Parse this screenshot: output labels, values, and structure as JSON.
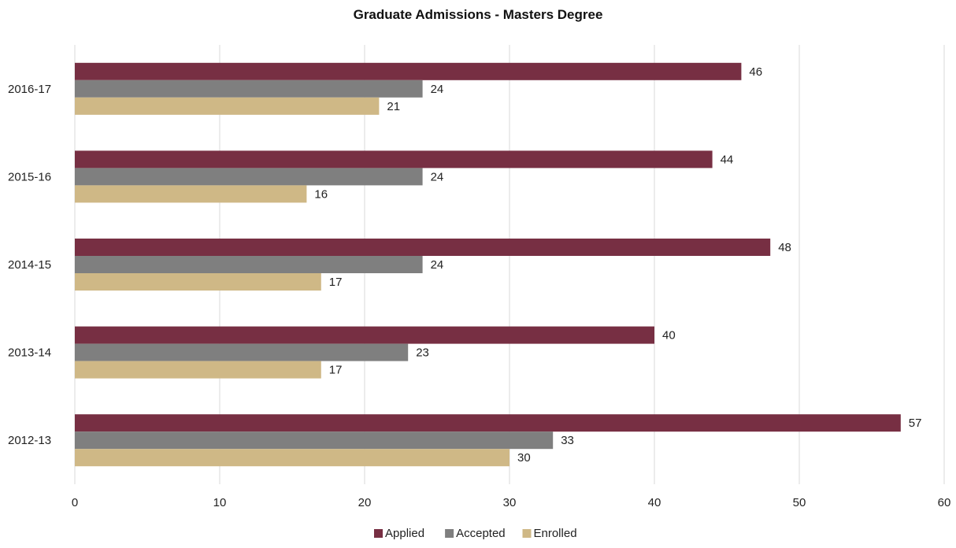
{
  "chart_data": {
    "type": "bar",
    "orientation": "horizontal",
    "title": "Graduate Admissions - Masters Degree",
    "xlabel": "",
    "ylabel": "",
    "categories": [
      "2016-17",
      "2015-16",
      "2014-15",
      "2013-14",
      "2012-13"
    ],
    "series": [
      {
        "name": "Applied",
        "color": "#772f43",
        "values": [
          46,
          44,
          48,
          40,
          57
        ]
      },
      {
        "name": "Accepted",
        "color": "#7f7f7f",
        "values": [
          24,
          24,
          24,
          23,
          33
        ]
      },
      {
        "name": "Enrolled",
        "color": "#cfb886",
        "values": [
          21,
          16,
          17,
          17,
          30
        ]
      }
    ],
    "xlim": [
      0,
      60
    ],
    "xticks": [
      0,
      10,
      20,
      30,
      40,
      50,
      60
    ],
    "grid": "vertical",
    "data_labels": true,
    "legend_position": "bottom"
  }
}
